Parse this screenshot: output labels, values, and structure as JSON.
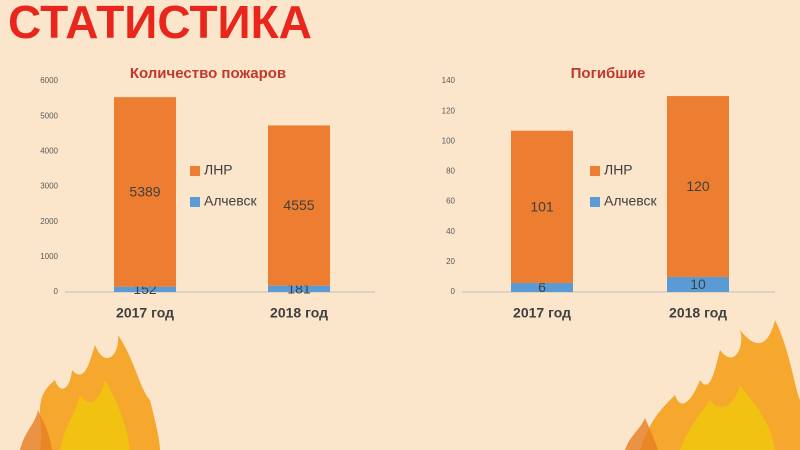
{
  "title": "СТАТИСТИКА",
  "chart_data": [
    {
      "type": "stacked-bar",
      "title": "Количество пожаров",
      "categories": [
        "2017 год",
        "2018 год"
      ],
      "series": [
        {
          "name": "Алчевск",
          "color": "#5b9bd5",
          "values": [
            152,
            181
          ]
        },
        {
          "name": "ЛНР",
          "color": "#ed7d31",
          "values": [
            5389,
            4555
          ]
        }
      ],
      "ylim": [
        0,
        6000
      ],
      "yticks": [
        0,
        1000,
        2000,
        3000,
        4000,
        5000,
        6000
      ],
      "grid": false
    },
    {
      "type": "stacked-bar",
      "title": "Погибшие",
      "categories": [
        "2017 год",
        "2018 год"
      ],
      "series": [
        {
          "name": "Алчевск",
          "color": "#5b9bd5",
          "values": [
            6,
            10
          ]
        },
        {
          "name": "ЛНР",
          "color": "#ed7d31",
          "values": [
            101,
            120
          ]
        }
      ],
      "ylim": [
        0,
        140
      ],
      "yticks": [
        0,
        20,
        40,
        60,
        80,
        100,
        120,
        140
      ],
      "grid": false
    }
  ]
}
